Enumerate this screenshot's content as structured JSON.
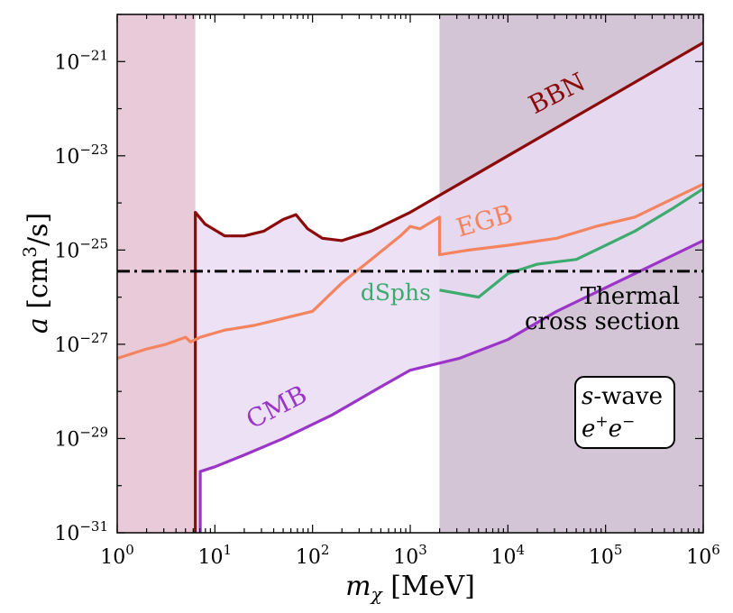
{
  "chart_data": {
    "type": "line",
    "title": "",
    "xlabel": "m_χ [MeV]",
    "ylabel": "a [cm³/s]",
    "xscale": "log",
    "yscale": "log",
    "xlim_log10": [
      0,
      6
    ],
    "ylim_log10": [
      -31,
      -20
    ],
    "x_ticks": [
      {
        "exp": 0,
        "base": "10",
        "sup": "0"
      },
      {
        "exp": 1,
        "base": "10",
        "sup": "1"
      },
      {
        "exp": 2,
        "base": "10",
        "sup": "2"
      },
      {
        "exp": 3,
        "base": "10",
        "sup": "3"
      },
      {
        "exp": 4,
        "base": "10",
        "sup": "4"
      },
      {
        "exp": 5,
        "base": "10",
        "sup": "5"
      },
      {
        "exp": 6,
        "base": "10",
        "sup": "6"
      }
    ],
    "y_ticks": [
      {
        "exp": -31,
        "base": "10",
        "sup": "−31"
      },
      {
        "exp": -29,
        "base": "10",
        "sup": "−29"
      },
      {
        "exp": -27,
        "base": "10",
        "sup": "−27"
      },
      {
        "exp": -25,
        "base": "10",
        "sup": "−25"
      },
      {
        "exp": -23,
        "base": "10",
        "sup": "−23"
      },
      {
        "exp": -21,
        "base": "10",
        "sup": "−21"
      }
    ],
    "excluded_regions": [
      {
        "name": "low-mass exclusion",
        "x_log10": [
          0,
          0.8
        ],
        "color": "#e2b8cc"
      },
      {
        "name": "high-mass exclusion",
        "x_log10": [
          3.3,
          6
        ],
        "color": "#c8b6cc"
      }
    ],
    "series": [
      {
        "name": "BBN",
        "color": "#8b0a0a",
        "points": [
          [
            0.8,
            -31
          ],
          [
            0.8,
            -24.2
          ],
          [
            0.9,
            -24.45
          ],
          [
            1.1,
            -24.7
          ],
          [
            1.3,
            -24.7
          ],
          [
            1.5,
            -24.6
          ],
          [
            1.7,
            -24.35
          ],
          [
            1.83,
            -24.25
          ],
          [
            1.95,
            -24.55
          ],
          [
            2.1,
            -24.75
          ],
          [
            2.3,
            -24.8
          ],
          [
            2.6,
            -24.6
          ],
          [
            3.0,
            -24.2
          ],
          [
            3.5,
            -23.6
          ],
          [
            4.0,
            -23.0
          ],
          [
            4.5,
            -22.4
          ],
          [
            5.0,
            -21.8
          ],
          [
            5.5,
            -21.2
          ],
          [
            6.0,
            -20.6
          ]
        ]
      },
      {
        "name": "EGB",
        "color": "#f4845f",
        "points": [
          [
            0,
            -27.3
          ],
          [
            0.15,
            -27.2
          ],
          [
            0.3,
            -27.1
          ],
          [
            0.5,
            -27.0
          ],
          [
            0.7,
            -26.85
          ],
          [
            0.75,
            -26.95
          ],
          [
            0.85,
            -26.85
          ],
          [
            1.1,
            -26.7
          ],
          [
            1.4,
            -26.6
          ],
          [
            1.6,
            -26.5
          ],
          [
            2.0,
            -26.3
          ],
          [
            2.3,
            -25.7
          ],
          [
            2.6,
            -25.2
          ],
          [
            2.9,
            -24.7
          ],
          [
            3.0,
            -24.5
          ],
          [
            3.1,
            -24.55
          ],
          [
            3.3,
            -24.3
          ],
          [
            3.3,
            -25.1
          ],
          [
            3.6,
            -25.0
          ],
          [
            4.0,
            -24.9
          ],
          [
            4.5,
            -24.75
          ],
          [
            4.9,
            -24.5
          ],
          [
            5.3,
            -24.3
          ],
          [
            5.6,
            -24.0
          ],
          [
            6.0,
            -23.6
          ]
        ]
      },
      {
        "name": "dSphs",
        "color": "#3daa6e",
        "points": [
          [
            3.3,
            -25.85
          ],
          [
            3.7,
            -26.0
          ],
          [
            4.0,
            -25.5
          ],
          [
            4.3,
            -25.3
          ],
          [
            4.7,
            -25.2
          ],
          [
            5.0,
            -24.9
          ],
          [
            5.3,
            -24.6
          ],
          [
            5.7,
            -24.1
          ],
          [
            6.0,
            -23.7
          ]
        ]
      },
      {
        "name": "CMB",
        "color": "#9b35c8",
        "points": [
          [
            0.85,
            -31
          ],
          [
            0.85,
            -29.7
          ],
          [
            1.0,
            -29.6
          ],
          [
            1.3,
            -29.35
          ],
          [
            1.7,
            -29.0
          ],
          [
            2.2,
            -28.5
          ],
          [
            2.7,
            -27.9
          ],
          [
            3.0,
            -27.55
          ],
          [
            3.5,
            -27.3
          ],
          [
            4.0,
            -26.9
          ],
          [
            4.5,
            -26.3
          ],
          [
            5.0,
            -25.8
          ],
          [
            5.5,
            -25.3
          ],
          [
            6.0,
            -24.8
          ]
        ]
      },
      {
        "name": "Thermal cross section",
        "color": "#000000",
        "style": "dash-dot",
        "points": [
          [
            0,
            -25.45
          ],
          [
            6,
            -25.45
          ]
        ]
      }
    ],
    "annotations": {
      "bbn": "BBN",
      "egb": "EGB",
      "dsphs": "dSphs",
      "cmb": "CMB",
      "thermal_line1": "Thermal",
      "thermal_line2": "cross section",
      "box_line1_italic": "s",
      "box_line1_rest": "-wave",
      "box_line2_e1": "e",
      "box_line2_sup1": "+",
      "box_line2_e2": "e",
      "box_line2_sup2": "−"
    }
  }
}
